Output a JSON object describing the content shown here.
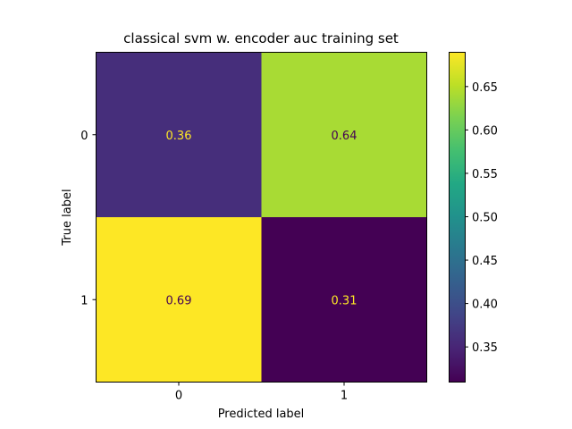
{
  "chart_data": {
    "type": "heatmap",
    "title": "classical svm w. encoder auc training set",
    "xlabel": "Predicted label",
    "ylabel": "True label",
    "x_categories": [
      "0",
      "1"
    ],
    "y_categories": [
      "0",
      "1"
    ],
    "matrix": [
      [
        0.36,
        0.64
      ],
      [
        0.69,
        0.31
      ]
    ],
    "cell_labels": [
      [
        "0.36",
        "0.64"
      ],
      [
        "0.69",
        "0.31"
      ]
    ],
    "colormap": "viridis",
    "colorbar": {
      "range": [
        0.31,
        0.69
      ],
      "ticks": [
        0.35,
        0.4,
        0.45,
        0.5,
        0.55,
        0.6,
        0.65
      ],
      "tick_labels": [
        "0.35",
        "0.40",
        "0.45",
        "0.50",
        "0.55",
        "0.60",
        "0.65"
      ]
    },
    "text_colors": {
      "on_dark": "#fde725",
      "on_light": "#440154"
    },
    "grid": false
  }
}
